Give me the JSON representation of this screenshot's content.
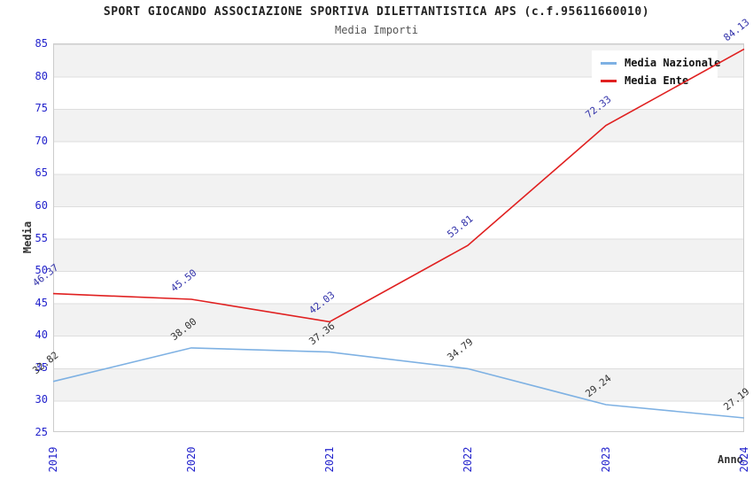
{
  "header": {
    "title": "SPORT GIOCANDO ASSOCIAZIONE SPORTIVA DILETTANTISTICA APS (c.f.95611660010)",
    "subtitle": "Media Importi"
  },
  "legend": {
    "items": [
      {
        "label": "Media Nazionale",
        "color": "#7eb1e3"
      },
      {
        "label": "Media Ente",
        "color": "#e02020"
      }
    ]
  },
  "colors": {
    "tick_label": "#2323cc",
    "band_gray": "#f2f2f2",
    "gridline": "#dedede",
    "plot_border": "#cccccc"
  },
  "chart_data": {
    "type": "line",
    "title": "SPORT GIOCANDO ASSOCIAZIONE SPORTIVA DILETTANTISTICA APS (c.f.95611660010)",
    "subtitle": "Media Importi",
    "xlabel": "Anno",
    "ylabel": "Media",
    "x": [
      2019,
      2020,
      2021,
      2022,
      2023,
      2024
    ],
    "series": [
      {
        "name": "Media Nazionale",
        "values": [
          32.82,
          38.0,
          37.36,
          34.79,
          29.24,
          27.19
        ],
        "color": "#7eb1e3",
        "label_color": "#333333"
      },
      {
        "name": "Media Ente",
        "values": [
          46.37,
          45.5,
          42.03,
          53.81,
          72.33,
          84.13
        ],
        "color": "#e02020",
        "label_color": "#3333aa"
      }
    ],
    "ylim": [
      25,
      85
    ],
    "ytick_step": 5,
    "grid": "horizontal-bands",
    "legend_position": "top-right"
  }
}
